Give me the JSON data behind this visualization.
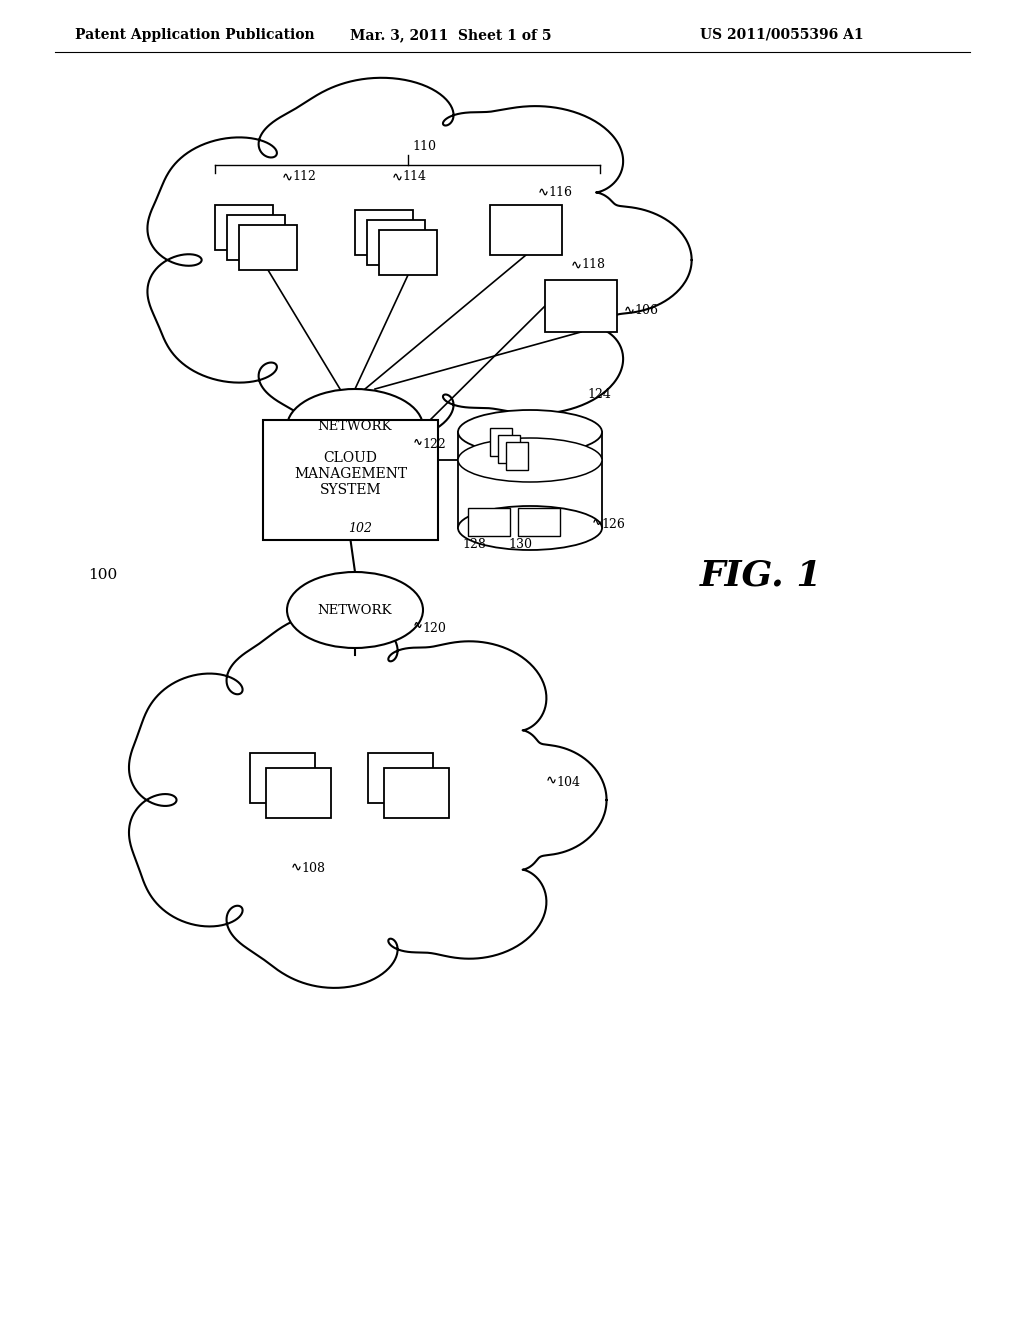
{
  "bg_color": "#ffffff",
  "line_color": "#000000",
  "header_left": "Patent Application Publication",
  "header_mid": "Mar. 3, 2011  Sheet 1 of 5",
  "header_right": "US 2011/0055396 A1",
  "fig_label": "FIG. 1",
  "label_100": "100",
  "label_102": "102",
  "label_104": "104",
  "label_106": "106",
  "label_108": "108",
  "label_110": "110",
  "label_112": "112",
  "label_114": "114",
  "label_116": "116",
  "label_118": "118",
  "label_120": "120",
  "label_122": "122",
  "label_124": "124",
  "label_126": "126",
  "label_128": "128",
  "label_130": "130",
  "network_text": "NETWORK",
  "cms_line1": "CLOUD",
  "cms_line2": "MANAGEMENT",
  "cms_line3": "SYSTEM"
}
